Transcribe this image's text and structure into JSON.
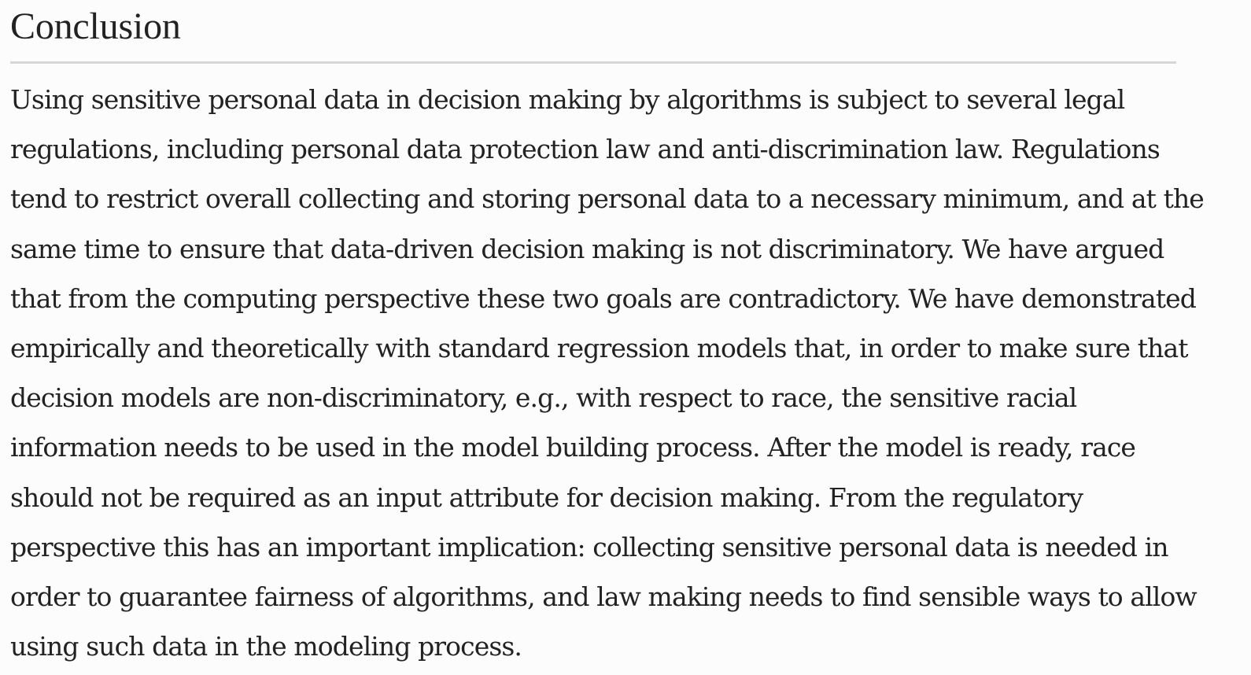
{
  "section": {
    "heading": "Conclusion",
    "paragraph_lines": [
      "Using sensitive personal data in decision making by algorithms is subject to several legal",
      "regulations, including personal data protection law and anti-discrimination law. Regulations",
      "tend to restrict overall collecting and storing personal data to a necessary minimum, and at the",
      "same time to ensure that data-driven decision making is not discriminatory. We have argued",
      "that from the computing perspective these two goals are contradictory. We have demonstrated",
      "empirically and theoretically with standard regression models that, in order to make sure that",
      "decision models are non-discriminatory, e.g., with respect to race, the sensitive racial",
      "information needs to be used in the model building process. After the model is ready, race",
      "should not be required as an input attribute for decision making. From the regulatory",
      "perspective this has an important implication: collecting sensitive personal data is needed in",
      "order to guarantee fairness of algorithms, and law making needs to find sensible ways to allow",
      "using such data in the modeling process."
    ]
  },
  "colors": {
    "background": "#fcfcfc",
    "text": "#222222",
    "rule": "#d6d6d6"
  }
}
